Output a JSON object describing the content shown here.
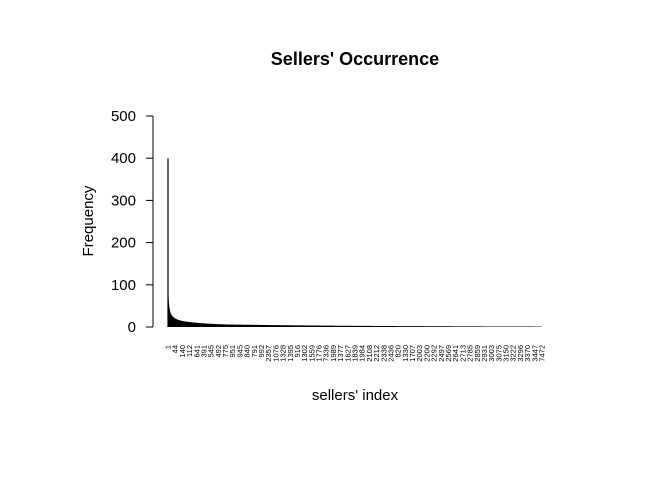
{
  "chart_data": {
    "type": "bar",
    "title": "Sellers' Occurrence",
    "xlabel": "sellers' index",
    "ylabel": "Frequency",
    "ylim": [
      0,
      500
    ],
    "yticks": [
      "0",
      "100",
      "200",
      "300",
      "400",
      "500"
    ],
    "xtick_labels": [
      "1",
      "44",
      "140",
      "112",
      "641",
      "391",
      "545",
      "492",
      "775",
      "951",
      "945",
      "840",
      "791",
      "992",
      "2357",
      "1076",
      "1328",
      "1395",
      "916",
      "1302",
      "1559",
      "1776",
      "7336",
      "1989",
      "1377",
      "1627",
      "1839",
      "1984",
      "2108",
      "2212",
      "2338",
      "2436",
      "820",
      "1330",
      "1707",
      "2003",
      "2200",
      "2292",
      "2497",
      "2569",
      "2641",
      "2713",
      "2785",
      "2859",
      "2931",
      "3003",
      "3075",
      "3150",
      "3222",
      "3296",
      "3370",
      "3447",
      "7472"
    ],
    "value_curve": {
      "n_bars": 7472,
      "x": [
        1,
        2,
        3,
        5,
        10,
        20,
        40,
        80,
        150,
        300,
        500,
        800,
        1200,
        1800,
        2500,
        3500,
        5000,
        7472
      ],
      "values": [
        400,
        210,
        150,
        110,
        80,
        57,
        40,
        27,
        20,
        14,
        11,
        8,
        6,
        5,
        4,
        3,
        2,
        1
      ]
    }
  }
}
